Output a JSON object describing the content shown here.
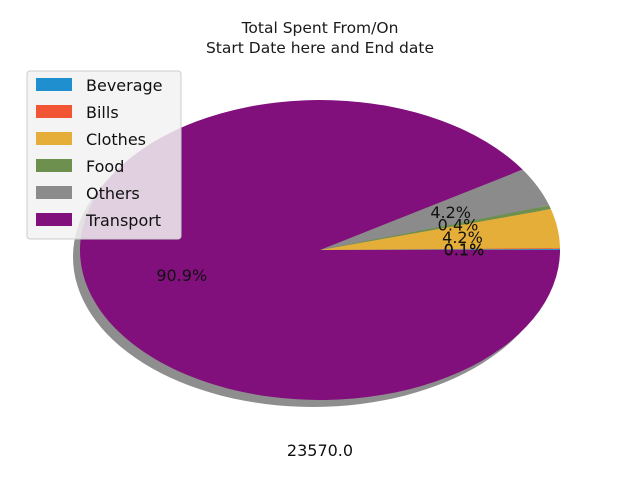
{
  "chart_data": {
    "type": "pie",
    "title_lines": [
      "Total Spent From/On",
      "Start Date here and End date"
    ],
    "categories": [
      "Beverage",
      "Bills",
      "Clothes",
      "Food",
      "Others",
      "Transport"
    ],
    "values": [
      0.1,
      0.1,
      4.2,
      0.4,
      4.2,
      90.9
    ],
    "labels": [
      "0.1%",
      "0.1%",
      "4.2%",
      "0.4%",
      "4.2%",
      "90.9%"
    ],
    "colors": [
      "#1f8fd0",
      "#f25533",
      "#e5ae38",
      "#6d904f",
      "#8b8b8b",
      "#810f7c"
    ],
    "shadow": true,
    "legend_position": "top-left",
    "total_label": "23570.0"
  }
}
